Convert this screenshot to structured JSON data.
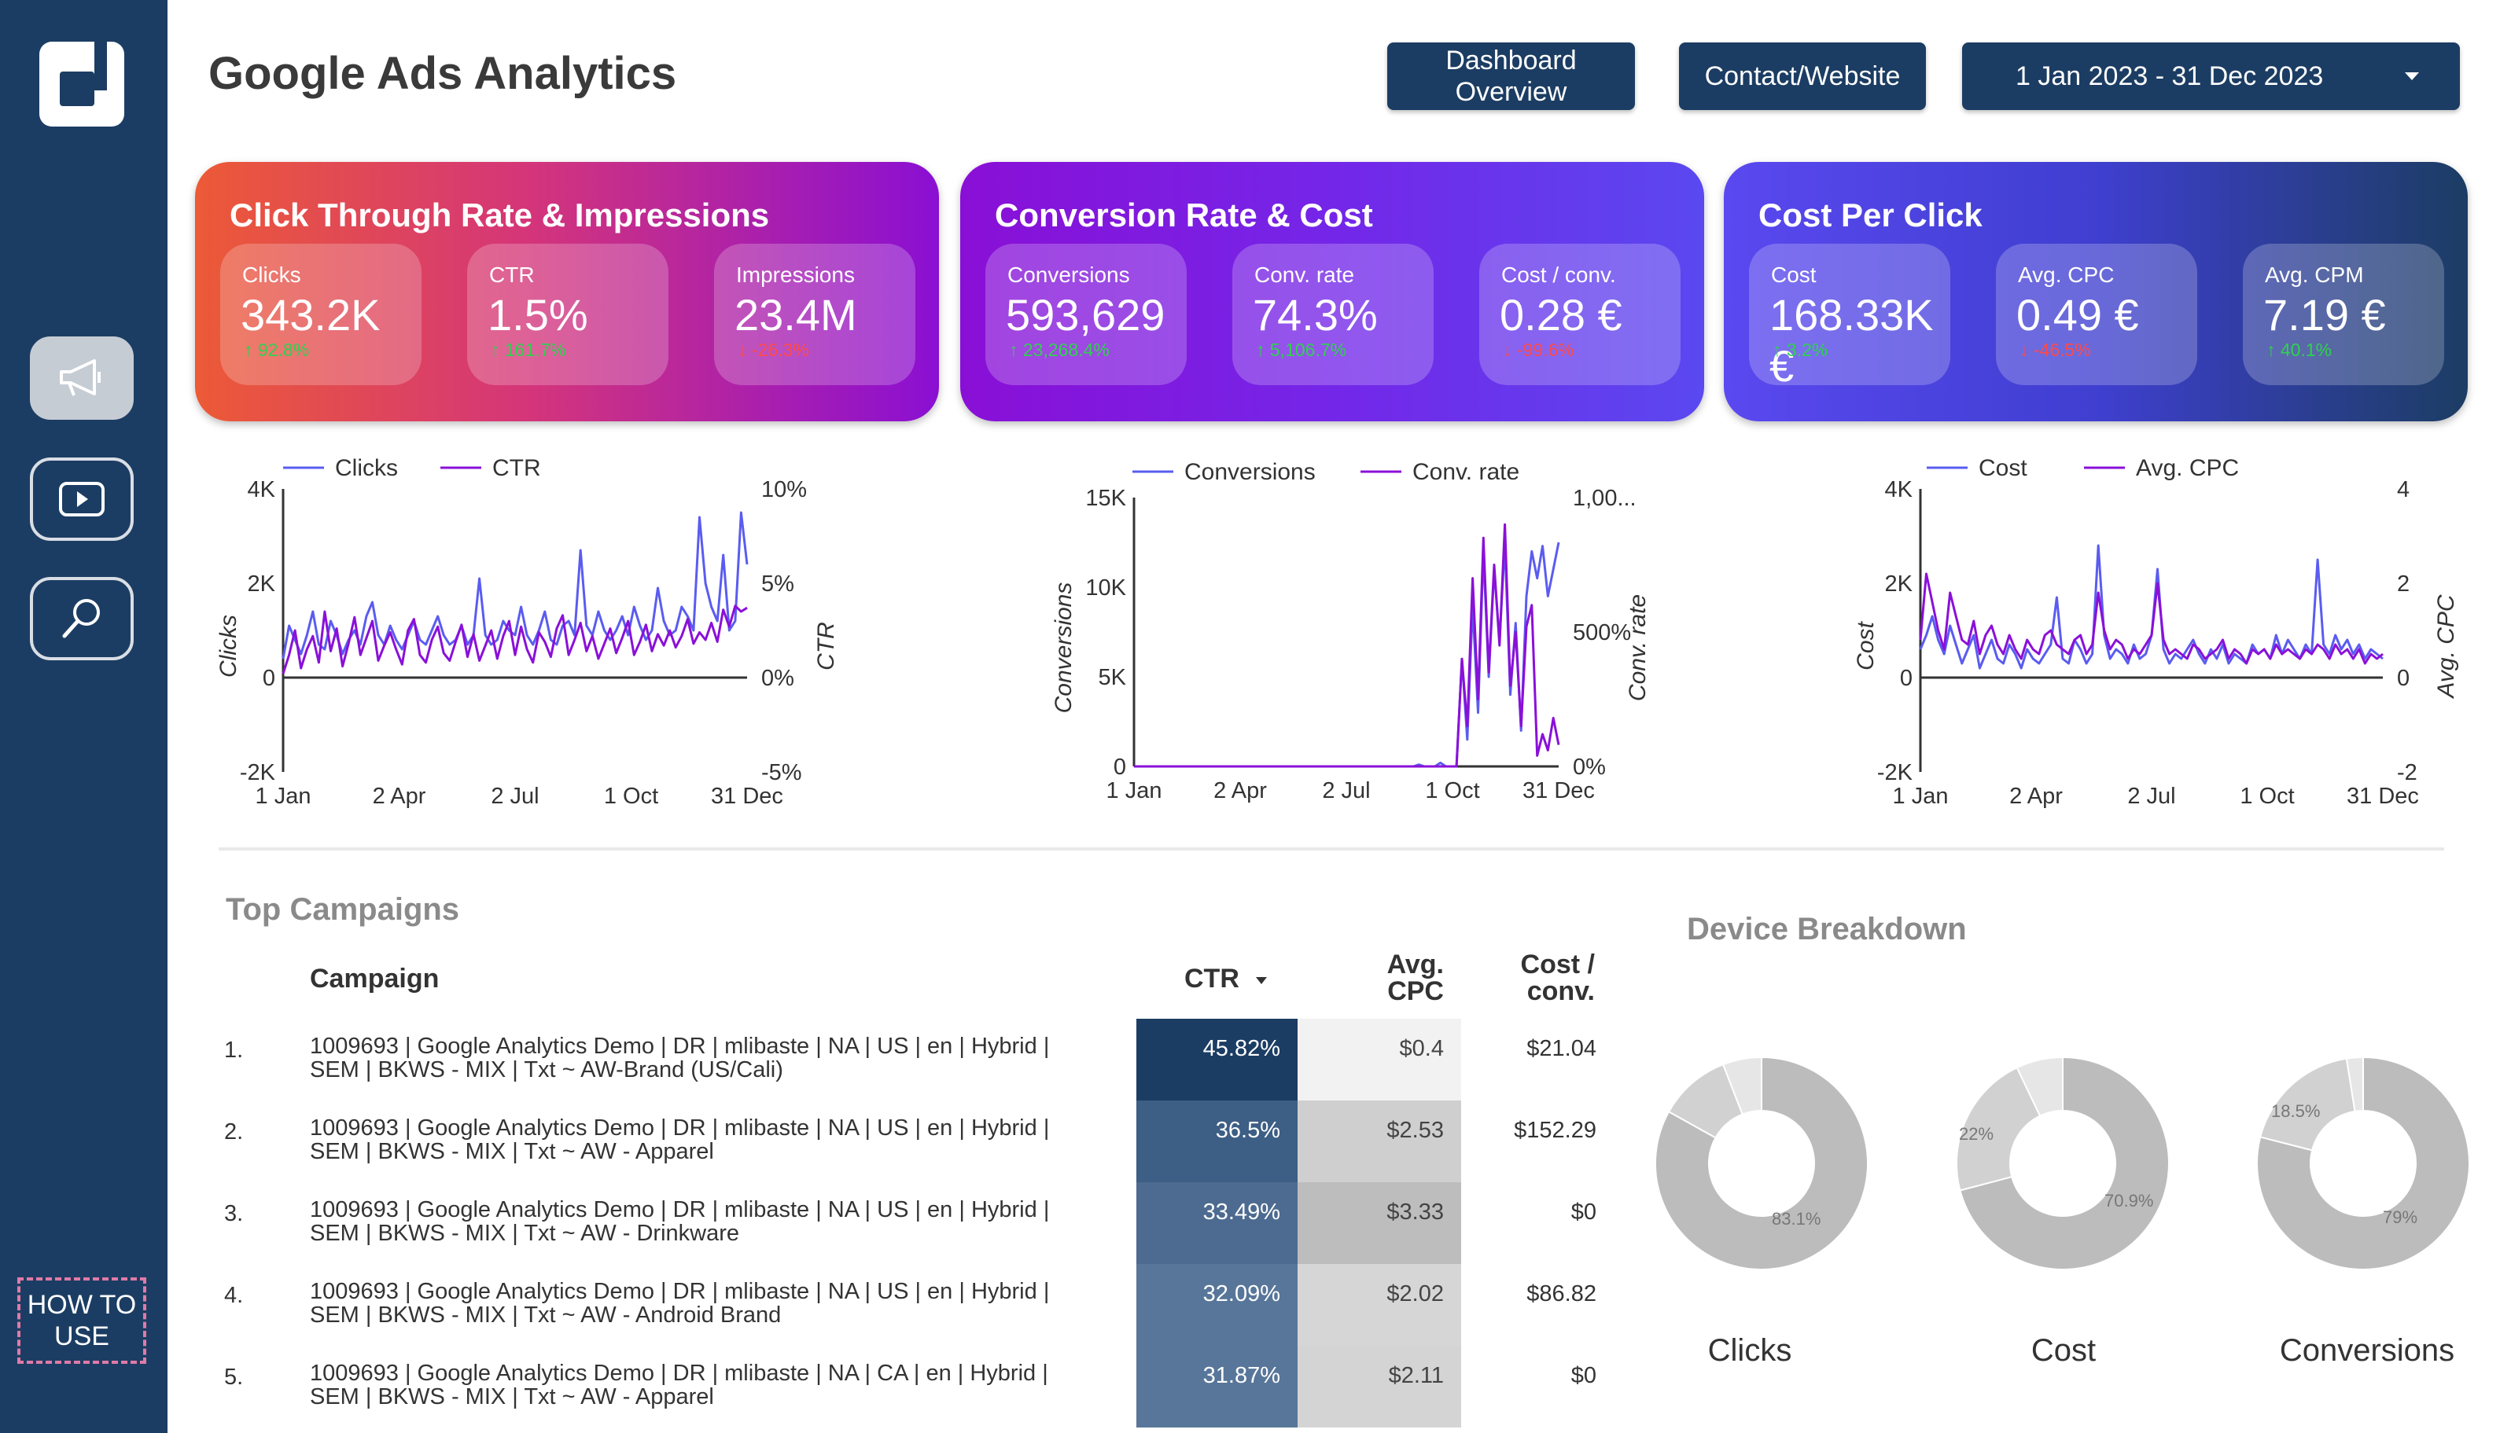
{
  "header": {
    "title": "Google Ads Analytics",
    "buttons": {
      "dashboard_line1": "Dashboard",
      "dashboard_line2": "Overview",
      "contact": "Contact/Website",
      "date_range": "1 Jan 2023 - 31 Dec 2023"
    }
  },
  "sidebar": {
    "icons": [
      "megaphone-icon",
      "youtube-icon",
      "search-icon"
    ],
    "howto_line1": "HOW TO",
    "howto_line2": "USE"
  },
  "cards": [
    {
      "title": "Click Through Rate & Impressions",
      "kpis": [
        {
          "label": "Clicks",
          "value": "343.2K",
          "delta": "92.8%",
          "direction": "up"
        },
        {
          "label": "CTR",
          "value": "1.5%",
          "delta": "161.7%",
          "direction": "up"
        },
        {
          "label": "Impressions",
          "value": "23.4M",
          "delta": "-26.3%",
          "direction": "down"
        }
      ]
    },
    {
      "title": "Conversion Rate & Cost",
      "kpis": [
        {
          "label": "Conversions",
          "value": "593,629",
          "delta": "23,268.4%",
          "direction": "up"
        },
        {
          "label": "Conv. rate",
          "value": "74.3%",
          "delta": "5,106.7%",
          "direction": "up"
        },
        {
          "label": "Cost / conv.",
          "value": "0.28 €",
          "delta": "-99.6%",
          "direction": "down"
        }
      ]
    },
    {
      "title": "Cost Per Click",
      "kpis": [
        {
          "label": "Cost",
          "value": "168.33K €",
          "delta": "3.2%",
          "direction": "up"
        },
        {
          "label": "Avg. CPC",
          "value": "0.49 €",
          "delta": "-46.5%",
          "direction": "down"
        },
        {
          "label": "Avg. CPM",
          "value": "7.19 €",
          "delta": "40.1%",
          "direction": "up"
        }
      ]
    }
  ],
  "colors": {
    "series_a": "#5a5cf0",
    "series_b": "#8a10d8",
    "up": "#2fd14f",
    "down": "#ff4a4a",
    "sidebar": "#1c3d63"
  },
  "chart_data": [
    {
      "type": "line",
      "x_ticks": [
        "1 Jan",
        "2 Apr",
        "2 Jul",
        "1 Oct",
        "31 Dec"
      ],
      "y_ticks": [
        "4K",
        "2K",
        "0",
        "-2K"
      ],
      "y2_ticks": [
        "10%",
        "5%",
        "0%",
        "-5%"
      ],
      "ylabel": "Clicks",
      "y2label": "CTR",
      "ylim": [
        -2000,
        4000
      ],
      "y2lim": [
        -5,
        10
      ],
      "legend_position": "top",
      "series": [
        {
          "name": "Clicks",
          "axis": "left",
          "values": [
            400,
            1100,
            800,
            500,
            900,
            1400,
            700,
            600,
            1200,
            900,
            500,
            800,
            1000,
            700,
            1300,
            1600,
            900,
            700,
            1100,
            800,
            600,
            900,
            1200,
            800,
            700,
            1000,
            1300,
            900,
            700,
            800,
            1100,
            700,
            900,
            2100,
            900,
            700,
            800,
            1200,
            1000,
            900,
            1500,
            900,
            700,
            1000,
            1400,
            800,
            700,
            1100,
            1200,
            900,
            2700,
            1100,
            900,
            1400,
            1000,
            800,
            1000,
            1300,
            900,
            1500,
            1100,
            800,
            1000,
            1900,
            1200,
            900,
            1000,
            1500,
            1300,
            1000,
            3400,
            2000,
            1500,
            1200,
            2600,
            1000,
            1200,
            3500,
            2400
          ]
        },
        {
          "name": "CTR",
          "axis": "right",
          "values": [
            0.2,
            1.2,
            2.5,
            0.5,
            1.5,
            2.2,
            0.8,
            3.5,
            1.4,
            2.6,
            0.6,
            1.8,
            3.2,
            1.2,
            2.1,
            3.0,
            0.9,
            1.7,
            2.4,
            1.5,
            0.7,
            2.5,
            3.1,
            1.2,
            0.8,
            2.0,
            2.7,
            1.3,
            0.9,
            1.9,
            2.8,
            1.1,
            2.3,
            0.9,
            1.7,
            2.5,
            1.0,
            2.2,
            3.0,
            1.2,
            2.7,
            1.5,
            0.8,
            2.4,
            1.9,
            1.1,
            2.6,
            3.3,
            1.2,
            2.0,
            2.9,
            1.4,
            2.2,
            1.0,
            1.8,
            2.6,
            1.3,
            2.1,
            3.0,
            1.2,
            1.9,
            2.8,
            1.4,
            2.3,
            1.7,
            2.5,
            1.6,
            2.2,
            3.1,
            1.8,
            2.4,
            2.0,
            2.9,
            1.9,
            3.6,
            2.7,
            3.8,
            3.5,
            3.7
          ]
        }
      ]
    },
    {
      "type": "line",
      "x_ticks": [
        "1 Jan",
        "2 Apr",
        "2 Jul",
        "1 Oct",
        "31 Dec"
      ],
      "y_ticks": [
        "15K",
        "10K",
        "5K",
        "0"
      ],
      "y2_ticks": [
        "1,00...",
        "500%",
        "0%"
      ],
      "ylabel": "Conversions",
      "y2label": "Conv. rate",
      "ylim": [
        0,
        15000
      ],
      "y2lim": [
        0,
        1000
      ],
      "legend_position": "top",
      "series": [
        {
          "name": "Conversions",
          "axis": "left",
          "values": [
            0,
            0,
            0,
            0,
            0,
            0,
            0,
            0,
            0,
            0,
            0,
            0,
            0,
            0,
            0,
            0,
            0,
            0,
            0,
            0,
            0,
            0,
            0,
            0,
            0,
            0,
            0,
            0,
            0,
            0,
            0,
            0,
            0,
            0,
            0,
            0,
            0,
            0,
            0,
            0,
            0,
            0,
            0,
            0,
            0,
            0,
            0,
            0,
            0,
            0,
            0,
            0,
            0,
            100,
            0,
            0,
            0,
            200,
            0,
            0,
            0,
            6000,
            1500,
            9000,
            3000,
            12000,
            5000,
            11000,
            7000,
            12500,
            4000,
            8000,
            2000,
            9500,
            12000,
            10500,
            12300,
            9500,
            11000,
            12500
          ]
        },
        {
          "name": "Conv. rate",
          "axis": "right",
          "values": [
            0,
            0,
            0,
            0,
            0,
            0,
            0,
            0,
            0,
            0,
            0,
            0,
            0,
            0,
            0,
            0,
            0,
            0,
            0,
            0,
            0,
            0,
            0,
            0,
            0,
            0,
            0,
            0,
            0,
            0,
            0,
            0,
            0,
            0,
            0,
            0,
            0,
            0,
            0,
            0,
            0,
            0,
            0,
            0,
            0,
            0,
            0,
            0,
            0,
            0,
            0,
            0,
            0,
            0,
            0,
            0,
            0,
            0,
            0,
            0,
            0,
            400,
            150,
            700,
            250,
            850,
            350,
            750,
            450,
            900,
            300,
            500,
            150,
            520,
            600,
            40,
            120,
            60,
            180,
            80
          ]
        }
      ]
    },
    {
      "type": "line",
      "x_ticks": [
        "1 Jan",
        "2 Apr",
        "2 Jul",
        "1 Oct",
        "31 Dec"
      ],
      "y_ticks": [
        "4K",
        "2K",
        "0",
        "-2K"
      ],
      "y2_ticks": [
        "4",
        "2",
        "0",
        "-2"
      ],
      "ylabel": "Cost",
      "y2label": "Avg. CPC",
      "ylim": [
        -2000,
        4000
      ],
      "y2lim": [
        -2,
        4
      ],
      "legend_position": "top",
      "series": [
        {
          "name": "Cost",
          "axis": "left",
          "values": [
            600,
            900,
            1300,
            800,
            500,
            1100,
            700,
            300,
            600,
            900,
            200,
            500,
            800,
            400,
            300,
            700,
            500,
            200,
            600,
            400,
            300,
            500,
            700,
            1700,
            400,
            300,
            800,
            600,
            300,
            500,
            2800,
            900,
            400,
            600,
            500,
            300,
            700,
            400,
            500,
            900,
            2300,
            600,
            300,
            500,
            400,
            600,
            800,
            500,
            300,
            600,
            400,
            700,
            300,
            500,
            400,
            300,
            700,
            500,
            600,
            400,
            900,
            500,
            800,
            600,
            400,
            700,
            500,
            2500,
            700,
            500,
            900,
            600,
            800,
            500,
            700,
            400,
            600,
            500,
            400
          ]
        },
        {
          "name": "Avg. CPC",
          "axis": "right",
          "values": [
            0.8,
            2.2,
            1.6,
            1.0,
            0.6,
            1.8,
            1.3,
            0.8,
            0.7,
            1.2,
            0.5,
            0.9,
            1.1,
            0.7,
            0.5,
            0.9,
            0.6,
            0.4,
            0.8,
            0.6,
            0.5,
            0.9,
            1.0,
            0.7,
            0.6,
            0.5,
            0.8,
            0.9,
            0.5,
            0.7,
            1.8,
            1.0,
            0.6,
            0.8,
            0.7,
            0.4,
            0.6,
            0.5,
            0.7,
            0.9,
            2.0,
            0.8,
            0.5,
            0.6,
            0.5,
            0.4,
            0.7,
            0.6,
            0.4,
            0.5,
            0.6,
            0.8,
            0.4,
            0.6,
            0.5,
            0.3,
            0.6,
            0.5,
            0.6,
            0.4,
            0.7,
            0.5,
            0.6,
            0.5,
            0.4,
            0.6,
            0.5,
            0.7,
            0.6,
            0.4,
            0.7,
            0.5,
            0.6,
            0.4,
            0.6,
            0.3,
            0.5,
            0.4,
            0.5
          ]
        }
      ]
    },
    {
      "type": "pie",
      "title": "Device Breakdown",
      "donut_labels": [
        "Clicks",
        "Cost",
        "Conversions"
      ],
      "slices": [
        {
          "values": [
            83.1,
            11.0,
            5.9
          ],
          "label_shown": "83.1%"
        },
        {
          "values": [
            70.9,
            22.0,
            7.1
          ],
          "label_shown_main": "70.9%",
          "label_shown_second": "22%"
        },
        {
          "values": [
            79.0,
            18.5,
            2.5
          ],
          "label_shown_main": "79%",
          "label_shown_second": "18.5%"
        }
      ]
    }
  ],
  "table": {
    "title": "Top Campaigns",
    "headers": {
      "campaign": "Campaign",
      "ctr": "CTR",
      "cpc_line1": "Avg.",
      "cpc_line2": "CPC",
      "cc_line1": "Cost /",
      "cc_line2": "conv."
    },
    "rows": [
      {
        "idx": "1.",
        "line1": "1009693 | Google Analytics Demo | DR | mlibaste | NA | US | en | Hybrid |",
        "line2": "SEM | BKWS - MIX | Txt ~ AW-Brand (US/Cali)",
        "ctr": "45.82%",
        "cpc": "$0.4",
        "cost_conv": "$21.04"
      },
      {
        "idx": "2.",
        "line1": "1009693 | Google Analytics Demo | DR | mlibaste | NA | US | en | Hybrid |",
        "line2": "SEM | BKWS - MIX | Txt ~ AW - Apparel",
        "ctr": "36.5%",
        "cpc": "$2.53",
        "cost_conv": "$152.29"
      },
      {
        "idx": "3.",
        "line1": "1009693 | Google Analytics Demo | DR | mlibaste | NA | US | en | Hybrid |",
        "line2": "SEM | BKWS - MIX | Txt ~ AW - Drinkware",
        "ctr": "33.49%",
        "cpc": "$3.33",
        "cost_conv": "$0"
      },
      {
        "idx": "4.",
        "line1": "1009693 | Google Analytics Demo | DR | mlibaste | NA | US | en | Hybrid |",
        "line2": "SEM | BKWS - MIX | Txt ~ AW - Android Brand",
        "ctr": "32.09%",
        "cpc": "$2.02",
        "cost_conv": "$86.82"
      },
      {
        "idx": "5.",
        "line1": "1009693 | Google Analytics Demo | DR | mlibaste | NA | CA | en | Hybrid |",
        "line2": "SEM | BKWS - MIX | Txt ~ AW - Apparel",
        "ctr": "31.87%",
        "cpc": "$2.11",
        "cost_conv": "$0"
      }
    ]
  }
}
